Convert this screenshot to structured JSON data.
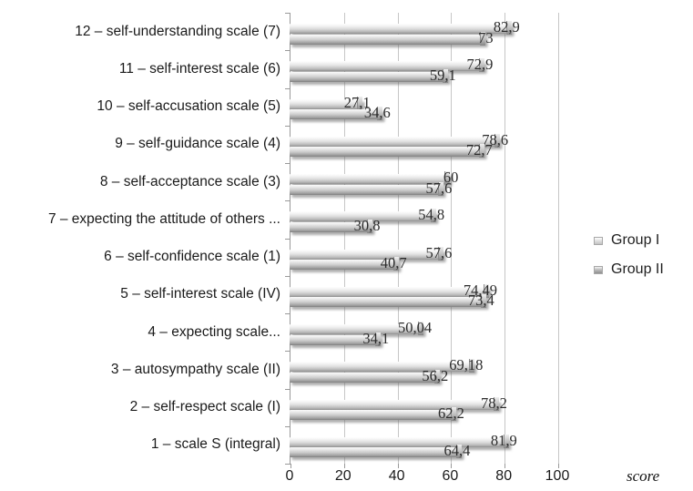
{
  "chart_data": {
    "type": "bar",
    "orientation": "horizontal",
    "title": "",
    "xlabel": "score",
    "ylabel": "",
    "xlim": [
      0,
      102
    ],
    "x_ticks": [
      0,
      20,
      40,
      60,
      80,
      100
    ],
    "grid": "vertical",
    "legend_position": "right",
    "value_decimal_separator": ",",
    "categories": [
      "12 – self-understanding scale (7)",
      "11 – self-interest scale (6)",
      "10 – self-accusation scale (5)",
      "9 – self-guidance scale (4)",
      "8 – self-acceptance scale (3)",
      "7 – expecting the attitude of others ...",
      "6 – self-confidence scale (1)",
      "5 – self-interest scale  (IV)",
      "4 – expecting scale...",
      "3 – autosympathy scale (II)",
      "2 – self-respect scale (I)",
      "1 – scale S (integral)"
    ],
    "series": [
      {
        "name": "Group I",
        "color": "#e2e2e2",
        "values": [
          82.9,
          72.9,
          27.1,
          78.6,
          60,
          54.8,
          57.6,
          74.49,
          50.04,
          69.18,
          78.2,
          81.9
        ],
        "labels": [
          "82,9",
          "72,9",
          "27,1",
          "78,6",
          "60",
          "54,8",
          "57,6",
          "74,49",
          "50,04",
          "69,18",
          "78,2",
          "81,9"
        ]
      },
      {
        "name": "Group II",
        "color": "#bdbdbd",
        "values": [
          73,
          59.1,
          34.6,
          72.7,
          57.6,
          30.8,
          40.7,
          73.4,
          34.1,
          56.2,
          62.2,
          64.4
        ],
        "labels": [
          "73",
          "59,1",
          "34,6",
          "72,7",
          "57,6",
          "30,8",
          "40,7",
          "73,4",
          "34,1",
          "56,2",
          "62,2",
          "64,4"
        ]
      }
    ]
  },
  "colors": {
    "gridline": "#c6c6c6",
    "axis": "#9a9a9a",
    "category_text": "#1a1a1a",
    "value_text": "#2b2b2b",
    "legend_text": "#1f1f1f"
  }
}
